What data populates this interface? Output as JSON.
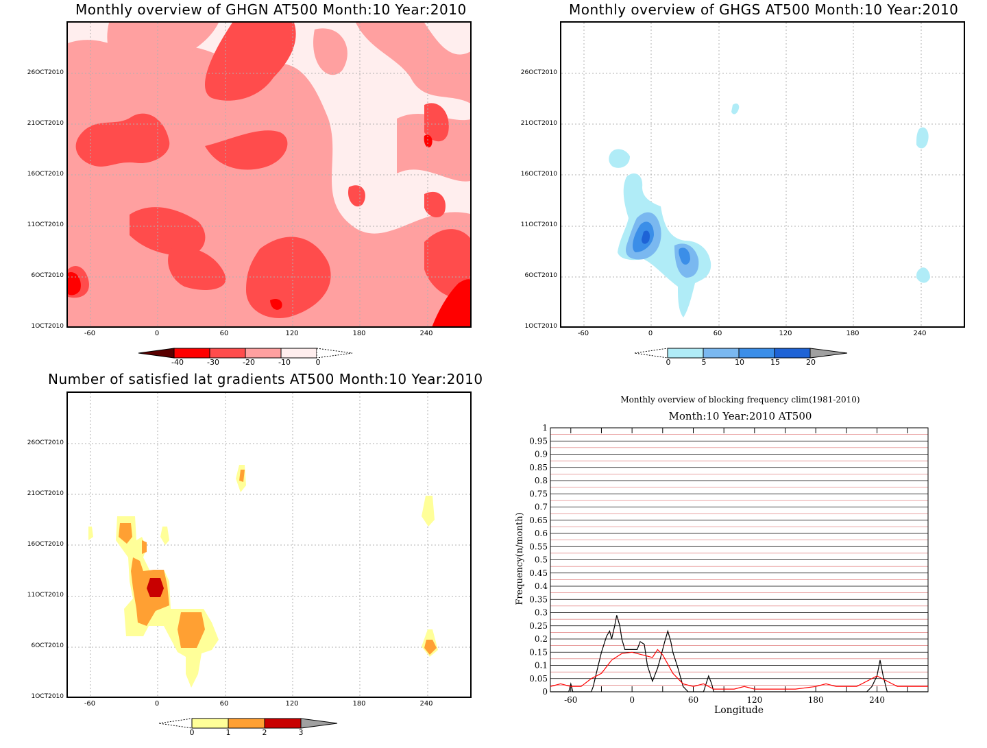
{
  "panels": {
    "ghgn": {
      "title": "Monthly overview of GHGN AT500 Month:10 Year:2010"
    },
    "ghgs": {
      "title": "Monthly overview of GHGS AT500 Month:10 Year:2010"
    },
    "grad": {
      "title": "Number of satisfied lat gradients AT500 Month:10 Year:2010"
    },
    "freq": {
      "title": "Monthly overview of blocking frequency clim(1981-2010)",
      "subtitle": "Month:10 Year:2010  AT500",
      "xlabel": "Longitude",
      "ylabel": "Frequency(n/month)"
    }
  },
  "axes": {
    "x_ticks": [
      "-60",
      "0",
      "60",
      "120",
      "180",
      "240"
    ],
    "y_ticks": [
      "26OCT2010",
      "21OCT2010",
      "16OCT2010",
      "11OCT2010",
      "6OCT2010",
      "1OCT2010"
    ]
  },
  "colorbars": {
    "ghgn": {
      "labels": [
        "-40",
        "-30",
        "-20",
        "-10",
        "0"
      ],
      "colors": [
        "#5a0000",
        "#ff0000",
        "#ff4c4c",
        "#ffa0a0",
        "#ffeeee"
      ]
    },
    "ghgs": {
      "labels": [
        "0",
        "5",
        "10",
        "15",
        "20"
      ],
      "colors": [
        "#b0ecf7",
        "#7ab8f0",
        "#3b8ee8",
        "#1e63d6",
        "#a0a0a0"
      ]
    },
    "grad": {
      "labels": [
        "0",
        "1",
        "2",
        "3"
      ],
      "colors": [
        "#ffff99",
        "#ffa033",
        "#c80000",
        "#a0a0a0"
      ]
    }
  },
  "chart_data": [
    {
      "type": "heatmap",
      "title": "Monthly overview of GHGN AT500 Month:10 Year:2010",
      "xlim": [
        -72,
        288
      ],
      "ylim": [
        "1OCT2010",
        "31OCT2010"
      ],
      "levels": [
        -40,
        -30,
        -20,
        -10,
        0
      ],
      "grid": true
    },
    {
      "type": "heatmap",
      "title": "Monthly overview of GHGS AT500 Month:10 Year:2010",
      "xlim": [
        -72,
        288
      ],
      "ylim": [
        "1OCT2010",
        "31OCT2010"
      ],
      "levels": [
        0,
        5,
        10,
        15,
        20
      ],
      "grid": true
    },
    {
      "type": "heatmap",
      "title": "Number of satisfied lat gradients AT500 Month:10 Year:2010",
      "xlim": [
        -72,
        288
      ],
      "ylim": [
        "1OCT2010",
        "31OCT2010"
      ],
      "levels": [
        0,
        1,
        2,
        3
      ],
      "grid": true
    },
    {
      "type": "line",
      "title": "Monthly overview of blocking frequency clim(1981-2010)",
      "subtitle": "Month:10 Year:2010  AT500",
      "xlabel": "Longitude",
      "ylabel": "Frequency(n/month)",
      "xlim": [
        -80,
        290
      ],
      "ylim": [
        0,
        1
      ],
      "y_ticks": [
        "0",
        "0.05",
        "0.1",
        "0.15",
        "0.2",
        "0.25",
        "0.3",
        "0.35",
        "0.4",
        "0.45",
        "0.5",
        "0.55",
        "0.6",
        "0.65",
        "0.7",
        "0.75",
        "0.8",
        "0.85",
        "0.9",
        "0.95",
        "1"
      ],
      "x_ticks": [
        "-60",
        "0",
        "60",
        "120",
        "180",
        "240"
      ],
      "series": [
        {
          "color": "#000000",
          "x": [
            -80,
            -70,
            -62,
            -60,
            -58,
            -50,
            -40,
            -38,
            -35,
            -30,
            -25,
            -22,
            -20,
            -17,
            -15,
            -12,
            -10,
            -7,
            -4,
            0,
            5,
            8,
            12,
            15,
            20,
            25,
            28,
            30,
            32,
            35,
            38,
            40,
            45,
            50,
            55,
            60,
            70,
            75,
            78,
            80,
            90,
            120,
            180,
            230,
            235,
            240,
            243,
            246,
            250,
            260,
            290
          ],
          "y": [
            0,
            0,
            0,
            0.03,
            0,
            0,
            0,
            0.02,
            0.07,
            0.15,
            0.21,
            0.23,
            0.2,
            0.25,
            0.29,
            0.25,
            0.2,
            0.16,
            0.16,
            0.16,
            0.16,
            0.19,
            0.18,
            0.1,
            0.04,
            0.09,
            0.13,
            0.16,
            0.19,
            0.23,
            0.19,
            0.15,
            0.09,
            0.02,
            0,
            0,
            0,
            0.06,
            0.03,
            0,
            0,
            0,
            0,
            0,
            0.02,
            0.06,
            0.12,
            0.06,
            0,
            0,
            0
          ]
        },
        {
          "color": "#ff0000",
          "x": [
            -80,
            -70,
            -60,
            -50,
            -40,
            -30,
            -20,
            -10,
            0,
            10,
            20,
            25,
            30,
            40,
            50,
            60,
            70,
            80,
            90,
            100,
            110,
            120,
            140,
            160,
            180,
            190,
            200,
            220,
            240,
            250,
            260,
            280,
            290
          ],
          "y": [
            0.02,
            0.03,
            0.02,
            0.02,
            0.05,
            0.07,
            0.12,
            0.145,
            0.15,
            0.14,
            0.13,
            0.16,
            0.14,
            0.07,
            0.03,
            0.02,
            0.03,
            0.01,
            0.01,
            0.01,
            0.02,
            0.01,
            0.01,
            0.01,
            0.02,
            0.03,
            0.02,
            0.02,
            0.06,
            0.04,
            0.02,
            0.02,
            0.02
          ]
        }
      ]
    }
  ]
}
